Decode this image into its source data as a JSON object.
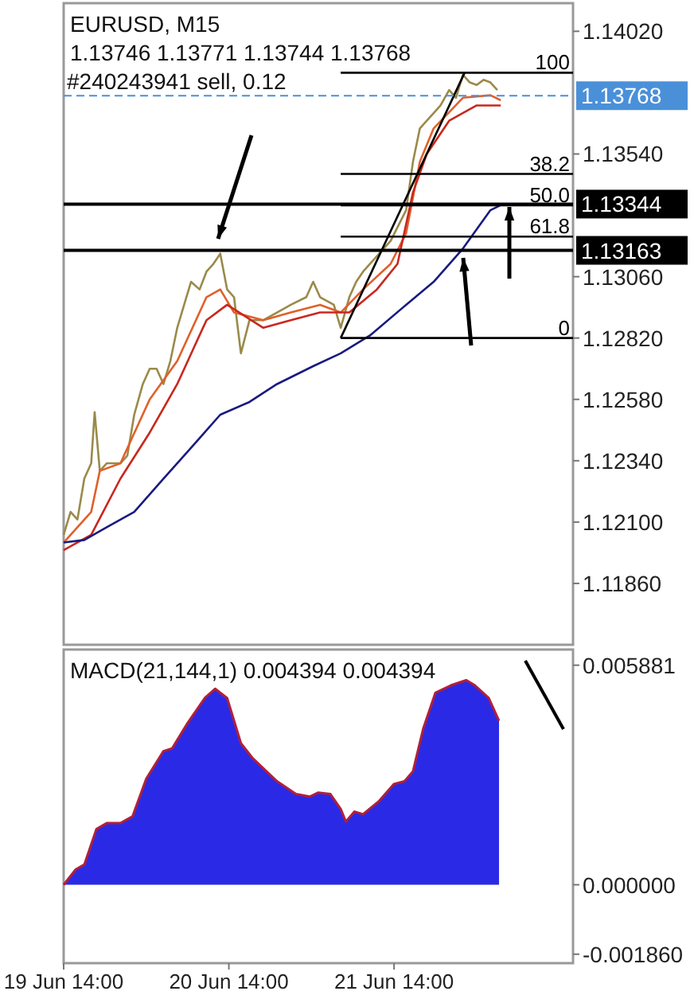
{
  "chart_data": [
    {
      "type": "line",
      "title": "EURUSD, M15",
      "subtitle": "1.13746 1.13771 1.13744 1.13768",
      "annotations": [
        "#240243941 sell, 0.12"
      ],
      "xlim": [
        "--06-19T14:00",
        "--06-22T16:00"
      ],
      "ylim": [
        1.1162,
        1.1413
      ],
      "yticks": [
        {
          "value": 1.1402,
          "label": "1.14020"
        },
        {
          "value": 1.1354,
          "label": "1.13540"
        },
        {
          "value": 1.1306,
          "label": "1.13060"
        },
        {
          "value": 1.1282,
          "label": "1.12820"
        },
        {
          "value": 1.1258,
          "label": "1.12580"
        },
        {
          "value": 1.1234,
          "label": "1.12340"
        },
        {
          "value": 1.121,
          "label": "1.12100"
        },
        {
          "value": 1.1186,
          "label": "1.11860"
        }
      ],
      "tick_labels": "y",
      "series": [
        {
          "color": "#9a8a4a",
          "x": [
            "--06-19T14:00",
            "--06-19T15:00",
            "--06-19T16:00",
            "--06-19T17:00",
            "--06-19T18:00",
            "--06-19T18:30",
            "--06-19T19:15",
            "--06-19T20:15",
            "--06-19T22:15",
            "--06-19T23:15",
            "--06-20T00:15",
            "--06-20T01:30",
            "--06-20T02:30",
            "--06-20T03:30",
            "--06-20T04:30",
            "--06-20T05:30",
            "--06-20T06:30",
            "--06-20T07:30",
            "--06-20T08:30",
            "--06-20T09:45",
            "--06-20T10:45",
            "--06-20T11:45",
            "--06-20T12:45",
            "--06-20T13:45",
            "--06-20T14:45",
            "--06-20T15:45",
            "--06-20T17:00",
            "--06-20T19:00",
            "--06-20T21:00",
            "--06-20T23:00",
            "--06-21T01:15",
            "--06-21T02:15",
            "--06-21T03:15",
            "--06-21T05:15",
            "--06-21T06:15",
            "--06-21T07:30",
            "--06-21T08:30",
            "--06-21T09:30",
            "--06-21T11:30",
            "--06-21T13:30",
            "--06-21T15:45",
            "--06-21T16:45",
            "--06-21T17:45",
            "--06-21T18:45",
            "--06-21T19:45",
            "--06-21T20:45",
            "--06-21T22:00",
            "--06-21T23:00",
            "--06-22T00:00",
            "--06-22T01:00",
            "--06-22T02:00",
            "--06-22T03:00",
            "--06-22T04:00",
            "--06-22T05:00"
          ],
          "values": [
            1.1205,
            1.1214,
            1.1211,
            1.1227,
            1.1233,
            1.1253,
            1.123,
            1.1233,
            1.1233,
            1.1236,
            1.1252,
            1.1264,
            1.127,
            1.127,
            1.1264,
            1.1273,
            1.1286,
            1.1295,
            1.1304,
            1.1301,
            1.1308,
            1.1311,
            1.1315,
            1.1301,
            1.1298,
            1.1276,
            1.1289,
            1.1289,
            1.1292,
            1.1295,
            1.1298,
            1.1304,
            1.1298,
            1.1295,
            1.1286,
            1.1298,
            1.1304,
            1.1308,
            1.1314,
            1.132,
            1.1332,
            1.1351,
            1.1364,
            1.1367,
            1.137,
            1.1373,
            1.1379,
            1.1376,
            1.1385,
            1.1382,
            1.1381,
            1.1383,
            1.1382,
            1.1379
          ]
        },
        {
          "color": "#e0602a",
          "x": [
            "--06-19T14:00",
            "--06-19T18:00",
            "--06-19T19:15",
            "--06-19T22:15",
            "--06-20T02:30",
            "--06-20T06:30",
            "--06-20T10:45",
            "--06-20T12:45",
            "--06-20T14:45",
            "--06-20T19:00",
            "--06-20T23:00",
            "--06-21T03:15",
            "--06-21T06:15",
            "--06-21T09:30",
            "--06-21T13:30",
            "--06-21T15:45",
            "--06-21T17:45",
            "--06-21T19:45",
            "--06-22T00:00",
            "--06-22T04:00",
            "--06-22T05:30"
          ],
          "values": [
            1.1202,
            1.1214,
            1.123,
            1.1233,
            1.1258,
            1.1273,
            1.1298,
            1.1301,
            1.1292,
            1.1289,
            1.1292,
            1.1295,
            1.1292,
            1.1301,
            1.1311,
            1.1323,
            1.1351,
            1.1364,
            1.1376,
            1.1377,
            1.1375
          ]
        },
        {
          "color": "#c8281e",
          "x": [
            "--06-19T14:00",
            "--06-19T18:00",
            "--06-19T22:15",
            "--06-20T02:30",
            "--06-20T06:30",
            "--06-20T10:45",
            "--06-20T13:45",
            "--06-20T19:00",
            "--06-20T23:00",
            "--06-21T03:15",
            "--06-21T07:30",
            "--06-21T11:30",
            "--06-21T14:30",
            "--06-21T16:45",
            "--06-21T18:45",
            "--06-21T22:00",
            "--06-22T02:00",
            "--06-22T05:30"
          ],
          "values": [
            1.1199,
            1.1205,
            1.1227,
            1.1245,
            1.1264,
            1.1289,
            1.1295,
            1.1286,
            1.1289,
            1.1292,
            1.1292,
            1.1301,
            1.1311,
            1.1339,
            1.1354,
            1.1367,
            1.1373,
            1.1373
          ]
        },
        {
          "color": "#1a1a80",
          "x": [
            "--06-19T14:00",
            "--06-19T17:00",
            "--06-19T20:15",
            "--06-20T00:15",
            "--06-20T04:30",
            "--06-20T08:30",
            "--06-20T12:45",
            "--06-20T17:00",
            "--06-20T21:00",
            "--06-21T02:15",
            "--06-21T06:15",
            "--06-21T10:30",
            "--06-21T15:45",
            "--06-21T19:45",
            "--06-22T00:00",
            "--06-22T04:00",
            "--06-22T05:30"
          ],
          "values": [
            1.1202,
            1.1203,
            1.1208,
            1.1214,
            1.1227,
            1.1239,
            1.1252,
            1.1257,
            1.1264,
            1.1271,
            1.1276,
            1.1283,
            1.1295,
            1.1304,
            1.1317,
            1.1332,
            1.1334
          ]
        },
        {
          "color": "#000000",
          "x": [
            "--06-21T06:15",
            "--06-22T00:15"
          ],
          "values": [
            1.1282,
            1.13858
          ]
        },
        {
          "name": "100",
          "color": "#000000",
          "x": [
            "--06-21T06:15",
            "--06-22T16:00"
          ],
          "values": [
            1.13858,
            1.13858
          ]
        },
        {
          "name": "38.2",
          "color": "#000000",
          "x": [
            "--06-21T06:15",
            "--06-22T16:00"
          ],
          "values": [
            1.13462,
            1.13462
          ]
        },
        {
          "name": "50.0",
          "color": "#000000",
          "x": [
            "--06-21T06:15",
            "--06-22T16:00"
          ],
          "values": [
            1.13339,
            1.13339
          ]
        },
        {
          "name": "61.8",
          "color": "#000000",
          "x": [
            "--06-21T06:15",
            "--06-22T16:00"
          ],
          "values": [
            1.13217,
            1.13217
          ]
        },
        {
          "name": "0",
          "color": "#000000",
          "x": [
            "--06-21T06:15",
            "--06-22T16:00"
          ],
          "values": [
            1.1282,
            1.1282
          ]
        }
      ],
      "ref_lines": [
        {
          "axis": "y",
          "value": 1.13768,
          "label": "1.13768",
          "color": "#4a90d9",
          "line_style": "dashed"
        },
        {
          "axis": "y",
          "value": 1.13344,
          "label": "1.13344",
          "color": "#000000"
        },
        {
          "axis": "y",
          "value": 1.13163,
          "label": "1.13163",
          "color": "#000000"
        }
      ]
    },
    {
      "type": "area",
      "title": "MACD(21,144,1) 0.004394 0.004394",
      "xlim": [
        "--06-19T14:00",
        "--06-22T16:00"
      ],
      "ylim": [
        -0.0021,
        0.0063
      ],
      "yticks": [
        {
          "value": 0.005881,
          "label": "0.005881"
        },
        {
          "value": 0,
          "label": "0.000000"
        },
        {
          "value": -0.00186,
          "label": "-0.001860"
        }
      ],
      "xticks": [
        {
          "value": "--06-19T14:00",
          "label": "19 Jun 14:00"
        },
        {
          "value": "--06-20T14:00",
          "label": "20 Jun 14:00"
        },
        {
          "value": "--06-21T14:00",
          "label": "21 Jun 14:00"
        }
      ],
      "series": [
        {
          "color": "#2a2ae6",
          "x": [
            "--06-19T14:00",
            "--06-19T15:45",
            "--06-19T17:00",
            "--06-19T18:45",
            "--06-19T20:15",
            "--06-19T22:15",
            "--06-20T00:00",
            "--06-20T02:00",
            "--06-20T04:30",
            "--06-20T05:45",
            "--06-20T08:00",
            "--06-20T10:30",
            "--06-20T12:00",
            "--06-20T13:45",
            "--06-20T15:45",
            "--06-20T17:30",
            "--06-20T21:00",
            "--06-20T23:45",
            "--06-21T01:45",
            "--06-21T03:00",
            "--06-21T04:45",
            "--06-21T06:15",
            "--06-21T07:00",
            "--06-21T08:15",
            "--06-21T09:30",
            "--06-21T11:45",
            "--06-21T14:00",
            "--06-21T15:30",
            "--06-21T16:45",
            "--06-21T18:15",
            "--06-21T20:00",
            "--06-21T22:15",
            "--06-22T00:30",
            "--06-22T01:45",
            "--06-22T03:45",
            "--06-22T05:15"
          ],
          "values": [
            0,
            0.00041,
            0.00054,
            0.00149,
            0.00165,
            0.00165,
            0.00183,
            0.00284,
            0.00358,
            0.00365,
            0.00433,
            0.005,
            0.00525,
            0.005,
            0.00379,
            0.00338,
            0.00277,
            0.00243,
            0.00236,
            0.00247,
            0.00243,
            0.00203,
            0.00169,
            0.00196,
            0.00189,
            0.00223,
            0.0027,
            0.00277,
            0.00304,
            0.00419,
            0.00514,
            0.00534,
            0.00548,
            0.00534,
            0.005,
            0.00439
          ]
        }
      ]
    }
  ]
}
